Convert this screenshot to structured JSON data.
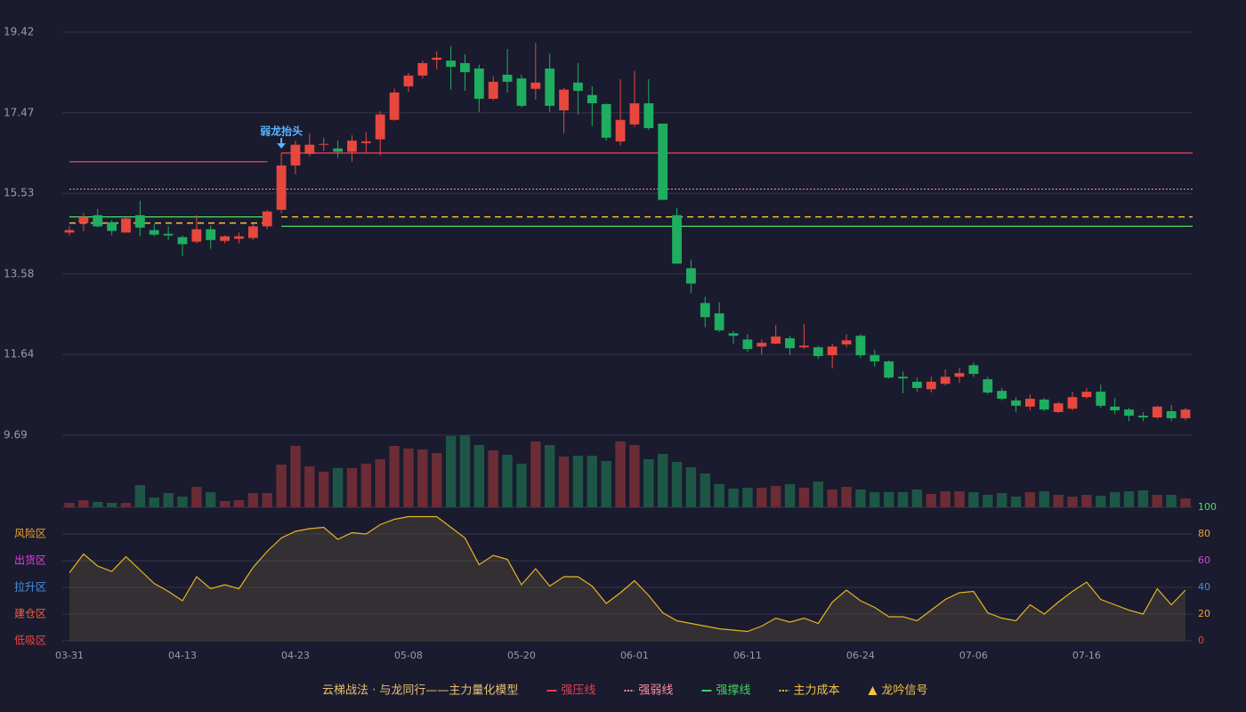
{
  "chart_data": {
    "type": "candlestick",
    "categories": [
      "03-31",
      null,
      null,
      null,
      null,
      null,
      null,
      null,
      "04-13",
      null,
      null,
      null,
      null,
      null,
      null,
      null,
      "04-23",
      null,
      null,
      null,
      null,
      null,
      null,
      null,
      "05-08",
      null,
      null,
      null,
      null,
      null,
      null,
      null,
      "05-20",
      null,
      null,
      null,
      null,
      null,
      null,
      null,
      "06-01",
      null,
      null,
      null,
      null,
      null,
      null,
      null,
      "06-11",
      null,
      null,
      null,
      null,
      null,
      null,
      null,
      "06-24",
      null,
      null,
      null,
      null,
      null,
      null,
      null,
      "07-06",
      null,
      null,
      null,
      null,
      null,
      null,
      null,
      "07-16",
      null,
      null,
      null,
      null,
      null,
      null,
      null
    ],
    "open": [
      14.58,
      14.81,
      15.0,
      14.83,
      14.58,
      15.0,
      14.64,
      14.55,
      14.47,
      14.36,
      14.66,
      14.38,
      14.43,
      14.45,
      14.73,
      15.13,
      16.2,
      16.48,
      16.7,
      16.61,
      16.53,
      16.74,
      16.83,
      17.3,
      18.11,
      18.37,
      18.75,
      18.73,
      18.67,
      18.54,
      17.81,
      18.39,
      18.3,
      18.05,
      18.54,
      17.53,
      18.2,
      17.9,
      17.68,
      16.78,
      17.19,
      17.7,
      17.21,
      15.0,
      13.72,
      12.88,
      12.63,
      12.15,
      12.0,
      11.83,
      11.9,
      12.03,
      11.81,
      11.81,
      11.62,
      11.88,
      12.09,
      11.62,
      11.47,
      11.1,
      10.98,
      10.8,
      10.93,
      11.1,
      11.38,
      11.04,
      10.76,
      10.53,
      10.38,
      10.55,
      10.25,
      10.33,
      10.61,
      10.74,
      10.38,
      10.31,
      10.16,
      10.12,
      10.27,
      10.1
    ],
    "high": [
      14.73,
      15.05,
      15.15,
      14.88,
      14.96,
      15.35,
      14.79,
      14.73,
      14.51,
      15.0,
      14.75,
      14.51,
      14.58,
      14.79,
      15.13,
      16.5,
      16.8,
      16.98,
      16.87,
      16.8,
      16.93,
      17.0,
      17.51,
      18.05,
      18.43,
      18.73,
      18.95,
      19.08,
      18.88,
      18.63,
      18.35,
      19.01,
      18.39,
      19.16,
      18.9,
      18.07,
      18.67,
      18.11,
      17.7,
      18.28,
      18.48,
      18.28,
      17.21,
      15.18,
      13.93,
      13.03,
      12.9,
      12.2,
      12.13,
      12.0,
      12.35,
      12.09,
      12.37,
      11.85,
      11.9,
      12.13,
      12.13,
      11.75,
      11.49,
      11.23,
      11.08,
      11.1,
      11.28,
      11.32,
      11.45,
      11.1,
      10.83,
      10.61,
      10.68,
      10.59,
      10.5,
      10.74,
      10.83,
      10.91,
      10.59,
      10.35,
      10.25,
      10.4,
      10.42,
      10.35
    ],
    "low": [
      14.51,
      14.62,
      14.7,
      14.51,
      14.58,
      14.49,
      14.49,
      14.4,
      14.02,
      14.32,
      14.19,
      14.32,
      14.32,
      14.4,
      14.66,
      15.05,
      15.99,
      16.42,
      16.55,
      16.38,
      16.29,
      16.5,
      16.44,
      17.28,
      17.98,
      18.3,
      18.52,
      18.03,
      18.0,
      17.49,
      17.77,
      17.96,
      17.6,
      17.79,
      17.49,
      16.98,
      17.43,
      17.15,
      16.8,
      16.68,
      17.13,
      17.06,
      15.37,
      13.83,
      13.12,
      12.3,
      12.18,
      11.9,
      11.7,
      11.64,
      11.88,
      11.62,
      11.77,
      11.53,
      11.3,
      11.81,
      11.55,
      11.34,
      11.06,
      10.7,
      10.74,
      10.72,
      10.89,
      10.95,
      11.1,
      10.68,
      10.53,
      10.25,
      10.29,
      10.27,
      10.23,
      10.29,
      10.57,
      10.35,
      10.2,
      10.03,
      10.03,
      10.08,
      10.03,
      10.05
    ],
    "close": [
      14.64,
      14.96,
      14.73,
      14.62,
      14.92,
      14.7,
      14.53,
      14.51,
      14.3,
      14.66,
      14.4,
      14.49,
      14.49,
      14.73,
      15.09,
      16.2,
      16.7,
      16.7,
      16.72,
      16.53,
      16.8,
      16.78,
      17.43,
      17.96,
      18.37,
      18.67,
      18.8,
      18.58,
      18.45,
      17.81,
      18.22,
      18.22,
      17.64,
      18.2,
      17.64,
      18.03,
      18.0,
      17.7,
      16.87,
      17.3,
      17.7,
      17.1,
      15.37,
      13.83,
      13.35,
      12.54,
      12.22,
      12.09,
      11.77,
      11.92,
      12.07,
      11.79,
      11.85,
      11.6,
      11.83,
      11.98,
      11.62,
      11.47,
      11.08,
      11.06,
      10.83,
      10.98,
      11.1,
      11.19,
      11.17,
      10.72,
      10.57,
      10.4,
      10.57,
      10.31,
      10.46,
      10.61,
      10.74,
      10.4,
      10.29,
      10.16,
      10.12,
      10.38,
      10.1,
      10.31
    ],
    "volume": [
      5,
      8,
      6,
      5,
      5,
      25,
      11,
      16,
      12,
      23,
      17,
      7,
      8,
      16,
      16,
      48,
      69,
      46,
      40,
      44,
      44,
      49,
      54,
      69,
      66,
      65,
      61,
      80,
      81,
      70,
      64,
      59,
      49,
      74,
      70,
      57,
      58,
      58,
      52,
      74,
      70,
      54,
      60,
      51,
      45,
      38,
      26,
      21,
      22,
      22,
      24,
      26,
      22,
      29,
      20,
      23,
      20,
      17,
      17,
      17,
      20,
      15,
      18,
      18,
      17,
      14,
      16,
      12,
      17,
      18,
      14,
      12,
      14,
      13,
      17,
      18,
      19,
      14,
      14,
      10
    ],
    "indicator": [
      51,
      65,
      56,
      52,
      63,
      53,
      43,
      37,
      30,
      48,
      39,
      42,
      39,
      55,
      67,
      77,
      82,
      84,
      85,
      76,
      81,
      80,
      87,
      91,
      93,
      93,
      93,
      85,
      77,
      57,
      64,
      61,
      42,
      54,
      41,
      48,
      48,
      41,
      28,
      36,
      45,
      34,
      21,
      15,
      13,
      11,
      9,
      8,
      7,
      11,
      17,
      14,
      17,
      13,
      29,
      38,
      30,
      25,
      18,
      18,
      15,
      23,
      31,
      36,
      37,
      21,
      17,
      15,
      27,
      20,
      29,
      37,
      44,
      31,
      27,
      23,
      20,
      39,
      27,
      38
    ],
    "up_color": "#e8473e",
    "down_color": "#1fae60",
    "up_volume_color": "#6b2c36",
    "down_volume_color": "#1e5646",
    "indicator_color": "#e5b522",
    "ylim": [
      9.69,
      19.42
    ],
    "yticks": [
      9.69,
      11.64,
      13.58,
      15.53,
      17.47,
      19.42
    ],
    "y2lim": [
      0,
      100
    ],
    "y2ticks": [
      0,
      20,
      40,
      60,
      80,
      100
    ],
    "y2tick_colors": [
      "#f04545",
      "#f0a030",
      "#4a90e2",
      "#e040e0",
      "#f0a030",
      "#3ee65a"
    ],
    "zones": [
      {
        "label": "风险区",
        "value": 80,
        "color": "#f0a030"
      },
      {
        "label": "出货区",
        "value": 60,
        "color": "#e040e0"
      },
      {
        "label": "拉升区",
        "value": 40,
        "color": "#4a90e2"
      },
      {
        "label": "建仓区",
        "value": 20,
        "color": "#f06040"
      },
      {
        "label": "低吸区",
        "value": 0,
        "color": "#f04545"
      }
    ],
    "grid": true,
    "levels": [
      {
        "name": "强压线",
        "color": "#e04050",
        "style": "solid",
        "values": [
          16.29,
          16.29,
          16.29,
          16.29,
          16.29,
          16.29,
          16.29,
          16.29,
          16.29,
          16.29,
          16.29,
          16.29,
          16.29,
          16.29,
          16.29,
          16.5,
          16.5,
          16.5,
          16.5,
          16.5,
          16.5,
          16.5,
          16.5,
          16.5,
          16.5,
          16.5,
          16.5,
          16.5,
          16.5,
          16.5,
          16.5,
          16.5,
          16.5,
          16.5,
          16.5,
          16.5,
          16.5,
          16.5,
          16.5,
          16.5,
          16.5,
          16.5,
          16.5,
          16.5,
          16.5,
          16.5,
          16.5,
          16.5,
          16.5,
          16.5,
          16.5,
          16.5,
          16.5,
          16.5,
          16.5,
          16.5,
          16.5,
          16.5,
          16.5,
          16.5,
          16.5,
          16.5,
          16.5,
          16.5,
          16.5,
          16.5,
          16.5,
          16.5,
          16.5,
          16.5,
          16.5,
          16.5,
          16.5,
          16.5,
          16.5,
          16.5,
          16.5,
          16.5,
          16.5,
          16.5
        ]
      },
      {
        "name": "强弱线",
        "color": "#ff8fa3",
        "style": "dotted",
        "values": [
          15.63,
          15.63,
          15.63,
          15.63,
          15.63,
          15.63,
          15.63,
          15.63,
          15.63,
          15.63,
          15.63,
          15.63,
          15.63,
          15.63,
          15.63,
          15.63,
          15.63,
          15.63,
          15.63,
          15.63,
          15.63,
          15.63,
          15.63,
          15.63,
          15.63,
          15.63,
          15.63,
          15.63,
          15.63,
          15.63,
          15.63,
          15.63,
          15.63,
          15.63,
          15.63,
          15.63,
          15.63,
          15.63,
          15.63,
          15.63,
          15.63,
          15.63,
          15.63,
          15.63,
          15.63,
          15.63,
          15.63,
          15.63,
          15.63,
          15.63,
          15.63,
          15.63,
          15.63,
          15.63,
          15.63,
          15.63,
          15.63,
          15.63,
          15.63,
          15.63,
          15.63,
          15.63,
          15.63,
          15.63,
          15.63,
          15.63,
          15.63,
          15.63,
          15.63,
          15.63,
          15.63,
          15.63,
          15.63,
          15.63,
          15.63,
          15.63,
          15.63,
          15.63,
          15.63,
          15.63
        ]
      },
      {
        "name": "强撑线",
        "color": "#45d060",
        "style": "solid",
        "values": [
          14.96,
          14.96,
          14.96,
          14.96,
          14.96,
          14.96,
          14.96,
          14.96,
          14.96,
          14.96,
          14.96,
          14.96,
          14.96,
          14.96,
          14.96,
          14.73,
          14.73,
          14.73,
          14.73,
          14.73,
          14.73,
          14.73,
          14.73,
          14.73,
          14.73,
          14.73,
          14.73,
          14.73,
          14.73,
          14.73,
          14.73,
          14.73,
          14.73,
          14.73,
          14.73,
          14.73,
          14.73,
          14.73,
          14.73,
          14.73,
          14.73,
          14.73,
          14.73,
          14.73,
          14.73,
          14.73,
          14.73,
          14.73,
          14.73,
          14.73,
          14.73,
          14.73,
          14.73,
          14.73,
          14.73,
          14.73,
          14.73,
          14.73,
          14.73,
          14.73,
          14.73,
          14.73,
          14.73,
          14.73,
          14.73,
          14.73,
          14.73,
          14.73,
          14.73,
          14.73,
          14.73,
          14.73,
          14.73,
          14.73,
          14.73,
          14.73,
          14.73,
          14.73,
          14.73,
          14.73
        ]
      },
      {
        "name": "主力成本",
        "color": "#f5c242",
        "style": "dashed",
        "values": [
          14.81,
          14.81,
          14.81,
          14.81,
          14.81,
          14.81,
          14.81,
          14.81,
          14.81,
          14.81,
          14.81,
          14.81,
          14.81,
          14.81,
          14.81,
          14.96,
          14.96,
          14.96,
          14.96,
          14.96,
          14.96,
          14.96,
          14.96,
          14.96,
          14.96,
          14.96,
          14.96,
          14.96,
          14.96,
          14.96,
          14.96,
          14.96,
          14.96,
          14.96,
          14.96,
          14.96,
          14.96,
          14.96,
          14.96,
          14.96,
          14.96,
          14.96,
          14.96,
          14.96,
          14.96,
          14.96,
          14.96,
          14.96,
          14.96,
          14.96,
          14.96,
          14.96,
          14.96,
          14.96,
          14.96,
          14.96,
          14.96,
          14.96,
          14.96,
          14.96,
          14.96,
          14.96,
          14.96,
          14.96,
          14.96,
          14.96,
          14.96,
          14.96,
          14.96,
          14.96,
          14.96,
          14.96,
          14.96,
          14.96,
          14.96,
          14.96,
          14.96,
          14.96,
          14.96,
          14.96
        ]
      }
    ],
    "signal": {
      "name": "龙吟信号",
      "color": "#f5c242"
    },
    "annotations": [
      {
        "text": "弱龙抬头",
        "index": 15,
        "color": "#5ab4ff"
      }
    ],
    "legend_title": "云梯战法 · 与龙同行——主力量化模型",
    "legend_title_color": "#e8c070"
  }
}
